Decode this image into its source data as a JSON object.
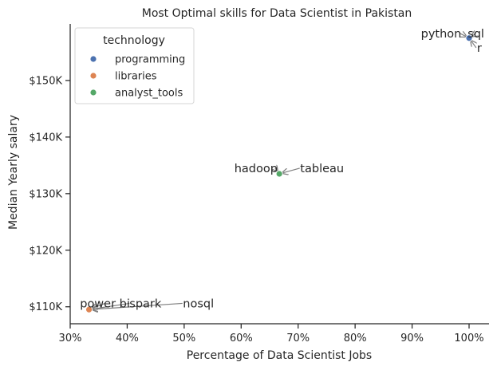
{
  "chart_data": {
    "type": "scatter",
    "title": "Most Optimal skills for Data Scientist in Pakistan",
    "xlabel": "Percentage of Data Scientist Jobs",
    "ylabel": "Median  Yearly salary",
    "xlim": [
      30,
      103.5
    ],
    "ylim": [
      107000,
      160000
    ],
    "xticks": [
      30,
      40,
      50,
      60,
      70,
      80,
      90,
      100
    ],
    "xtick_labels": [
      "30%",
      "40%",
      "50%",
      "60%",
      "70%",
      "80%",
      "90%",
      "100%"
    ],
    "yticks": [
      110000,
      120000,
      130000,
      140000,
      150000
    ],
    "ytick_labels": [
      "$110K",
      "$120K",
      "$130K",
      "$140K",
      "$150K"
    ],
    "grid": false,
    "legend": {
      "title": "technology",
      "placement": "top-left",
      "entries": [
        {
          "name": "programming",
          "color": "#4c72b0"
        },
        {
          "name": "libraries",
          "color": "#dd8452"
        },
        {
          "name": "analyst_tools",
          "color": "#55a868"
        }
      ]
    },
    "points": [
      {
        "skill": "python",
        "x": 100,
        "y": 157500,
        "category": "programming"
      },
      {
        "skill": "sql",
        "x": 100,
        "y": 157500,
        "category": "programming"
      },
      {
        "skill": "r",
        "x": 100,
        "y": 157500,
        "category": "programming"
      },
      {
        "skill": "hadoop",
        "x": 66.7,
        "y": 133500,
        "category": "analyst_tools"
      },
      {
        "skill": "tableau",
        "x": 66.7,
        "y": 133500,
        "category": "analyst_tools"
      },
      {
        "skill": "power bi",
        "x": 33.3,
        "y": 109500,
        "category": "libraries"
      },
      {
        "skill": "spark",
        "x": 33.3,
        "y": 109500,
        "category": "libraries"
      },
      {
        "skill": "nosql",
        "x": 33.3,
        "y": 109500,
        "category": "libraries"
      }
    ],
    "annotations": [
      {
        "text": "python",
        "x": 95.1,
        "y": 158300,
        "point_index": 0
      },
      {
        "text": "sql",
        "x": 101.2,
        "y": 158300,
        "point_index": 1
      },
      {
        "text": "r",
        "x": 101.8,
        "y": 155800,
        "point_index": 2
      },
      {
        "text": "hadoop",
        "x": 62.6,
        "y": 134500,
        "point_index": 3
      },
      {
        "text": "tableau",
        "x": 74.2,
        "y": 134500,
        "point_index": 4
      },
      {
        "text": "power bi",
        "x": 36.1,
        "y": 110600,
        "point_index": 5
      },
      {
        "text": "spark",
        "x": 43.2,
        "y": 110600,
        "point_index": 6
      },
      {
        "text": "nosql",
        "x": 52.5,
        "y": 110600,
        "point_index": 7
      }
    ]
  }
}
